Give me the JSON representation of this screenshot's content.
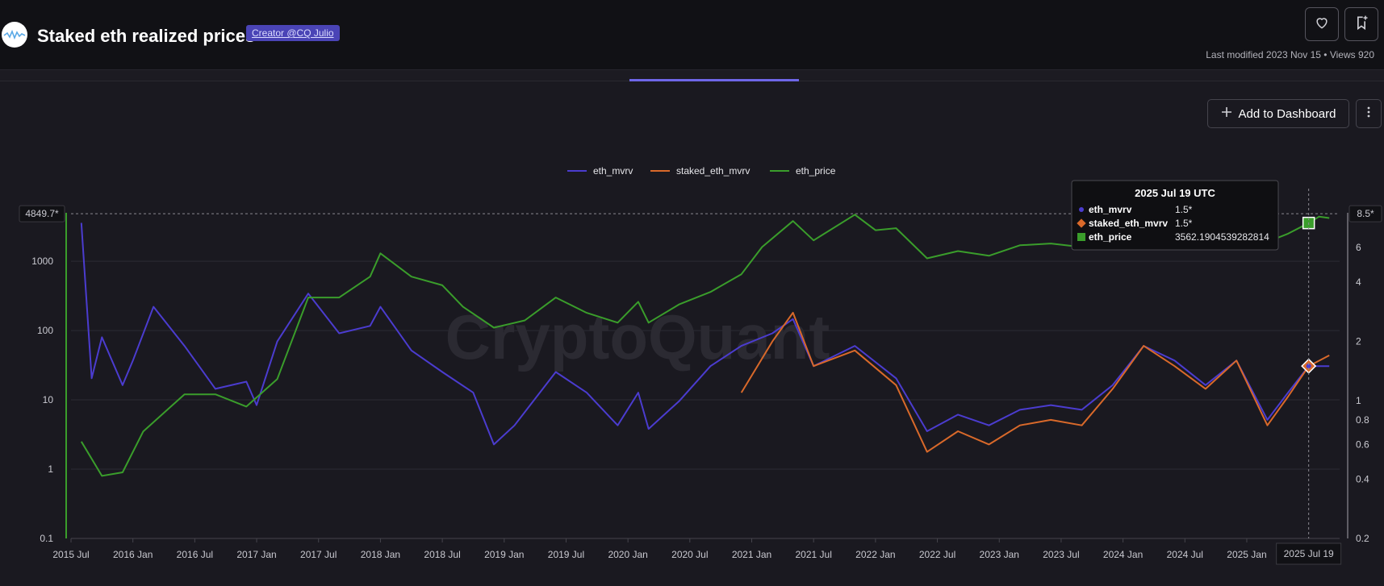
{
  "header": {
    "title": "Staked eth realized prices",
    "creator_label": "Creator @CQ Julio",
    "meta": "Last modified 2023 Nov 15 • Views 920"
  },
  "toolbar": {
    "add_to_dashboard_label": "Add to Dashboard"
  },
  "icons": {
    "like": "heart-icon",
    "bookmark": "bookmark-add-icon",
    "add": "plus-icon",
    "more": "more-vertical-icon",
    "logo": "cryptoquant-logo-icon"
  },
  "colors": {
    "eth_mvrv": "#4b3ccf",
    "staked_eth_mvrv": "#d9692a",
    "eth_price": "#3a9d2b",
    "accent": "#6e66e8",
    "background": "#1a1920"
  },
  "watermark": "CryptoQuant",
  "chart_data": {
    "type": "line",
    "title": "",
    "legend_position": "top-center",
    "grid": true,
    "x_tick_labels": [
      "2015 Jul",
      "2016 Jan",
      "2016 Jul",
      "2017 Jan",
      "2017 Jul",
      "2018 Jan",
      "2018 Jul",
      "2019 Jan",
      "2019 Jul",
      "2020 Jan",
      "2020 Jul",
      "2021 Jan",
      "2021 Jul",
      "2022 Jan",
      "2022 Jul",
      "2023 Jan",
      "2023 Jul",
      "2024 Jan",
      "2024 Jul",
      "2025 Jan"
    ],
    "left_axis": {
      "scale": "log",
      "range": [
        0.1,
        5000
      ],
      "ticks": [
        "0.1",
        "1",
        "10",
        "100",
        "1000"
      ],
      "badge": "4849.7*"
    },
    "right_axis": {
      "scale": "log",
      "range": [
        0.2,
        9
      ],
      "ticks": [
        "0.2",
        "0.4",
        "0.6",
        "0.8",
        "1",
        "2",
        "4",
        "6"
      ],
      "badge": "8.5*"
    },
    "crosshair_label": "2025 Jul 19",
    "series": [
      {
        "name": "eth_mvrv",
        "axis": "right",
        "points": [
          [
            "2015-08",
            8.0
          ],
          [
            "2015-09",
            1.3
          ],
          [
            "2015-10",
            2.1
          ],
          [
            "2015-12",
            1.2
          ],
          [
            "2016-01",
            1.6
          ],
          [
            "2016-03",
            3.0
          ],
          [
            "2016-06",
            1.9
          ],
          [
            "2016-09",
            1.15
          ],
          [
            "2016-12",
            1.25
          ],
          [
            "2017-01",
            0.95
          ],
          [
            "2017-03",
            2.0
          ],
          [
            "2017-06",
            3.5
          ],
          [
            "2017-09",
            2.2
          ],
          [
            "2017-12",
            2.4
          ],
          [
            "2018-01",
            3.0
          ],
          [
            "2018-04",
            1.8
          ],
          [
            "2018-07",
            1.4
          ],
          [
            "2018-10",
            1.1
          ],
          [
            "2018-12",
            0.6
          ],
          [
            "2019-02",
            0.75
          ],
          [
            "2019-06",
            1.4
          ],
          [
            "2019-09",
            1.1
          ],
          [
            "2019-12",
            0.75
          ],
          [
            "2020-02",
            1.1
          ],
          [
            "2020-03",
            0.72
          ],
          [
            "2020-06",
            1.0
          ],
          [
            "2020-09",
            1.5
          ],
          [
            "2020-12",
            1.9
          ],
          [
            "2021-03",
            2.2
          ],
          [
            "2021-05",
            2.6
          ],
          [
            "2021-07",
            1.5
          ],
          [
            "2021-11",
            1.9
          ],
          [
            "2022-03",
            1.3
          ],
          [
            "2022-06",
            0.7
          ],
          [
            "2022-09",
            0.85
          ],
          [
            "2022-12",
            0.75
          ],
          [
            "2023-03",
            0.9
          ],
          [
            "2023-06",
            0.95
          ],
          [
            "2023-09",
            0.9
          ],
          [
            "2023-12",
            1.2
          ],
          [
            "2024-03",
            1.9
          ],
          [
            "2024-06",
            1.6
          ],
          [
            "2024-09",
            1.2
          ],
          [
            "2024-12",
            1.6
          ],
          [
            "2025-03",
            0.8
          ],
          [
            "2025-05",
            1.1
          ],
          [
            "2025-07",
            1.5
          ],
          [
            "2025-09",
            1.5
          ]
        ]
      },
      {
        "name": "staked_eth_mvrv",
        "axis": "right",
        "points": [
          [
            "2020-12",
            1.1
          ],
          [
            "2021-03",
            2.0
          ],
          [
            "2021-05",
            2.8
          ],
          [
            "2021-07",
            1.5
          ],
          [
            "2021-11",
            1.8
          ],
          [
            "2022-03",
            1.2
          ],
          [
            "2022-06",
            0.55
          ],
          [
            "2022-09",
            0.7
          ],
          [
            "2022-12",
            0.6
          ],
          [
            "2023-03",
            0.75
          ],
          [
            "2023-06",
            0.8
          ],
          [
            "2023-09",
            0.75
          ],
          [
            "2023-12",
            1.15
          ],
          [
            "2024-03",
            1.9
          ],
          [
            "2024-06",
            1.5
          ],
          [
            "2024-09",
            1.15
          ],
          [
            "2024-12",
            1.6
          ],
          [
            "2025-03",
            0.75
          ],
          [
            "2025-05",
            1.05
          ],
          [
            "2025-07",
            1.5
          ],
          [
            "2025-09",
            1.7
          ]
        ]
      },
      {
        "name": "eth_price",
        "axis": "left",
        "points": [
          [
            "2015-08",
            2.5
          ],
          [
            "2015-10",
            0.8
          ],
          [
            "2015-12",
            0.9
          ],
          [
            "2016-02",
            3.5
          ],
          [
            "2016-06",
            12
          ],
          [
            "2016-09",
            12
          ],
          [
            "2016-12",
            8
          ],
          [
            "2017-03",
            20
          ],
          [
            "2017-06",
            300
          ],
          [
            "2017-09",
            300
          ],
          [
            "2017-12",
            600
          ],
          [
            "2018-01",
            1300
          ],
          [
            "2018-04",
            600
          ],
          [
            "2018-07",
            450
          ],
          [
            "2018-09",
            220
          ],
          [
            "2018-12",
            110
          ],
          [
            "2019-03",
            140
          ],
          [
            "2019-06",
            300
          ],
          [
            "2019-09",
            180
          ],
          [
            "2019-12",
            130
          ],
          [
            "2020-02",
            260
          ],
          [
            "2020-03",
            130
          ],
          [
            "2020-06",
            240
          ],
          [
            "2020-09",
            360
          ],
          [
            "2020-12",
            650
          ],
          [
            "2021-02",
            1600
          ],
          [
            "2021-05",
            3800
          ],
          [
            "2021-07",
            2000
          ],
          [
            "2021-11",
            4700
          ],
          [
            "2022-01",
            2800
          ],
          [
            "2022-03",
            3000
          ],
          [
            "2022-06",
            1100
          ],
          [
            "2022-09",
            1400
          ],
          [
            "2022-12",
            1200
          ],
          [
            "2023-03",
            1700
          ],
          [
            "2023-06",
            1800
          ],
          [
            "2023-09",
            1600
          ],
          [
            "2023-12",
            2300
          ],
          [
            "2024-03",
            3800
          ],
          [
            "2024-06",
            3500
          ],
          [
            "2024-09",
            2500
          ],
          [
            "2024-12",
            3600
          ],
          [
            "2025-03",
            1900
          ],
          [
            "2025-05",
            2500
          ],
          [
            "2025-07",
            3562.19
          ],
          [
            "2025-08",
            4400
          ],
          [
            "2025-09",
            4200
          ]
        ]
      }
    ],
    "tooltip": {
      "date": "2025 Jul 19 UTC",
      "rows": [
        {
          "name": "eth_mvrv",
          "value": "1.5*"
        },
        {
          "name": "staked_eth_mvrv",
          "value": "1.5*"
        },
        {
          "name": "eth_price",
          "value": "3562.1904539282814"
        }
      ]
    }
  }
}
